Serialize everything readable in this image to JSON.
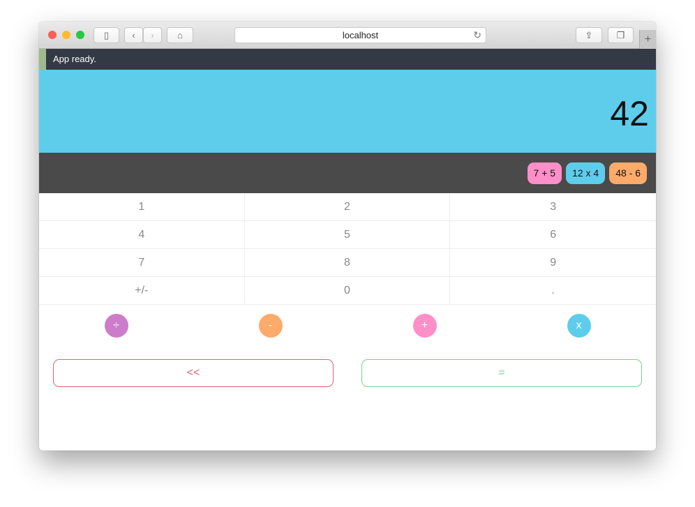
{
  "browser": {
    "url": "localhost"
  },
  "status": {
    "message": "App ready."
  },
  "display": {
    "value": "42"
  },
  "history": [
    {
      "label": "7 + 5",
      "color": "#fe8fc8"
    },
    {
      "label": "12 x 4",
      "color": "#5ecdec"
    },
    {
      "label": "48 - 6",
      "color": "#fdaa6a"
    }
  ],
  "keys": [
    "1",
    "2",
    "3",
    "4",
    "5",
    "6",
    "7",
    "8",
    "9",
    "+/-",
    "0",
    "."
  ],
  "operators": [
    {
      "label": "÷",
      "color": "#cd7cc9"
    },
    {
      "label": "-",
      "color": "#fdaa6a"
    },
    {
      "label": "+",
      "color": "#fe8fc8"
    },
    {
      "label": "x",
      "color": "#5ecdec"
    }
  ],
  "actions": {
    "back": "<<",
    "equals": "=",
    "back_color": "#e0626e",
    "equals_color": "#7bd08a"
  }
}
